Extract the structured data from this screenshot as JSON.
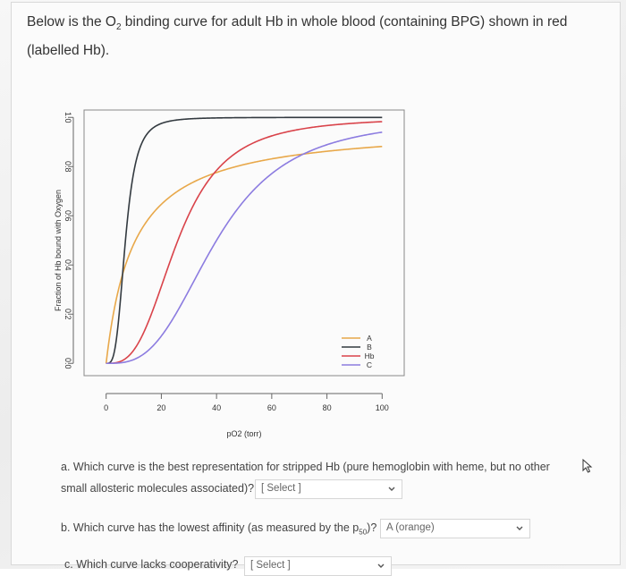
{
  "question": {
    "intro_before": "Below is the O",
    "intro_sub": "2",
    "intro_after": " binding curve for adult Hb in whole blood (containing BPG) shown in red (labelled Hb)."
  },
  "chart_data": {
    "type": "line",
    "xlabel": "pO2 (torr)",
    "ylabel": "Fraction of Hb bound with Oxygen",
    "xlim": [
      -8,
      108
    ],
    "ylim": [
      -0.05,
      1.03
    ],
    "xticks": [
      0,
      20,
      40,
      60,
      80,
      100
    ],
    "xtick_labels": [
      "0",
      "20",
      "40",
      "60",
      "80",
      "100"
    ],
    "yticks": [
      0.0,
      0.2,
      0.4,
      0.6,
      0.8,
      1.0
    ],
    "ytick_labels": [
      "0.0",
      "0.2",
      "0.4",
      "0.6",
      "0.8",
      "1.0"
    ],
    "grid": false,
    "legend_position": "bottom-right",
    "series": [
      {
        "name": "A",
        "color": "#e8a84a",
        "p50": 10,
        "n": 1.0,
        "ymax": 0.97
      },
      {
        "name": "B",
        "color": "#333a40",
        "p50": 7,
        "n": 3.5,
        "ymax": 1.0
      },
      {
        "name": "Hb",
        "color": "#d9434a",
        "p50": 26,
        "n": 3.0,
        "ymax": 1.0
      },
      {
        "name": "C",
        "color": "#8c7ce0",
        "p50": 40,
        "n": 3.0,
        "ymax": 1.0
      }
    ]
  },
  "parts": {
    "a_line1": "a. Which curve is the best representation for stripped Hb (pure hemoglobin with heme, but no other",
    "a_line2": "small allosteric molecules associated)?",
    "a_value": "[ Select ]",
    "b_before": "b. Which curve has the lowest affinity (as measured by the p",
    "b_sub": "50",
    "b_after": ")?",
    "b_value": "A (orange)",
    "c_text": "c. Which curve lacks cooperativity?",
    "c_value": "[ Select ]"
  }
}
